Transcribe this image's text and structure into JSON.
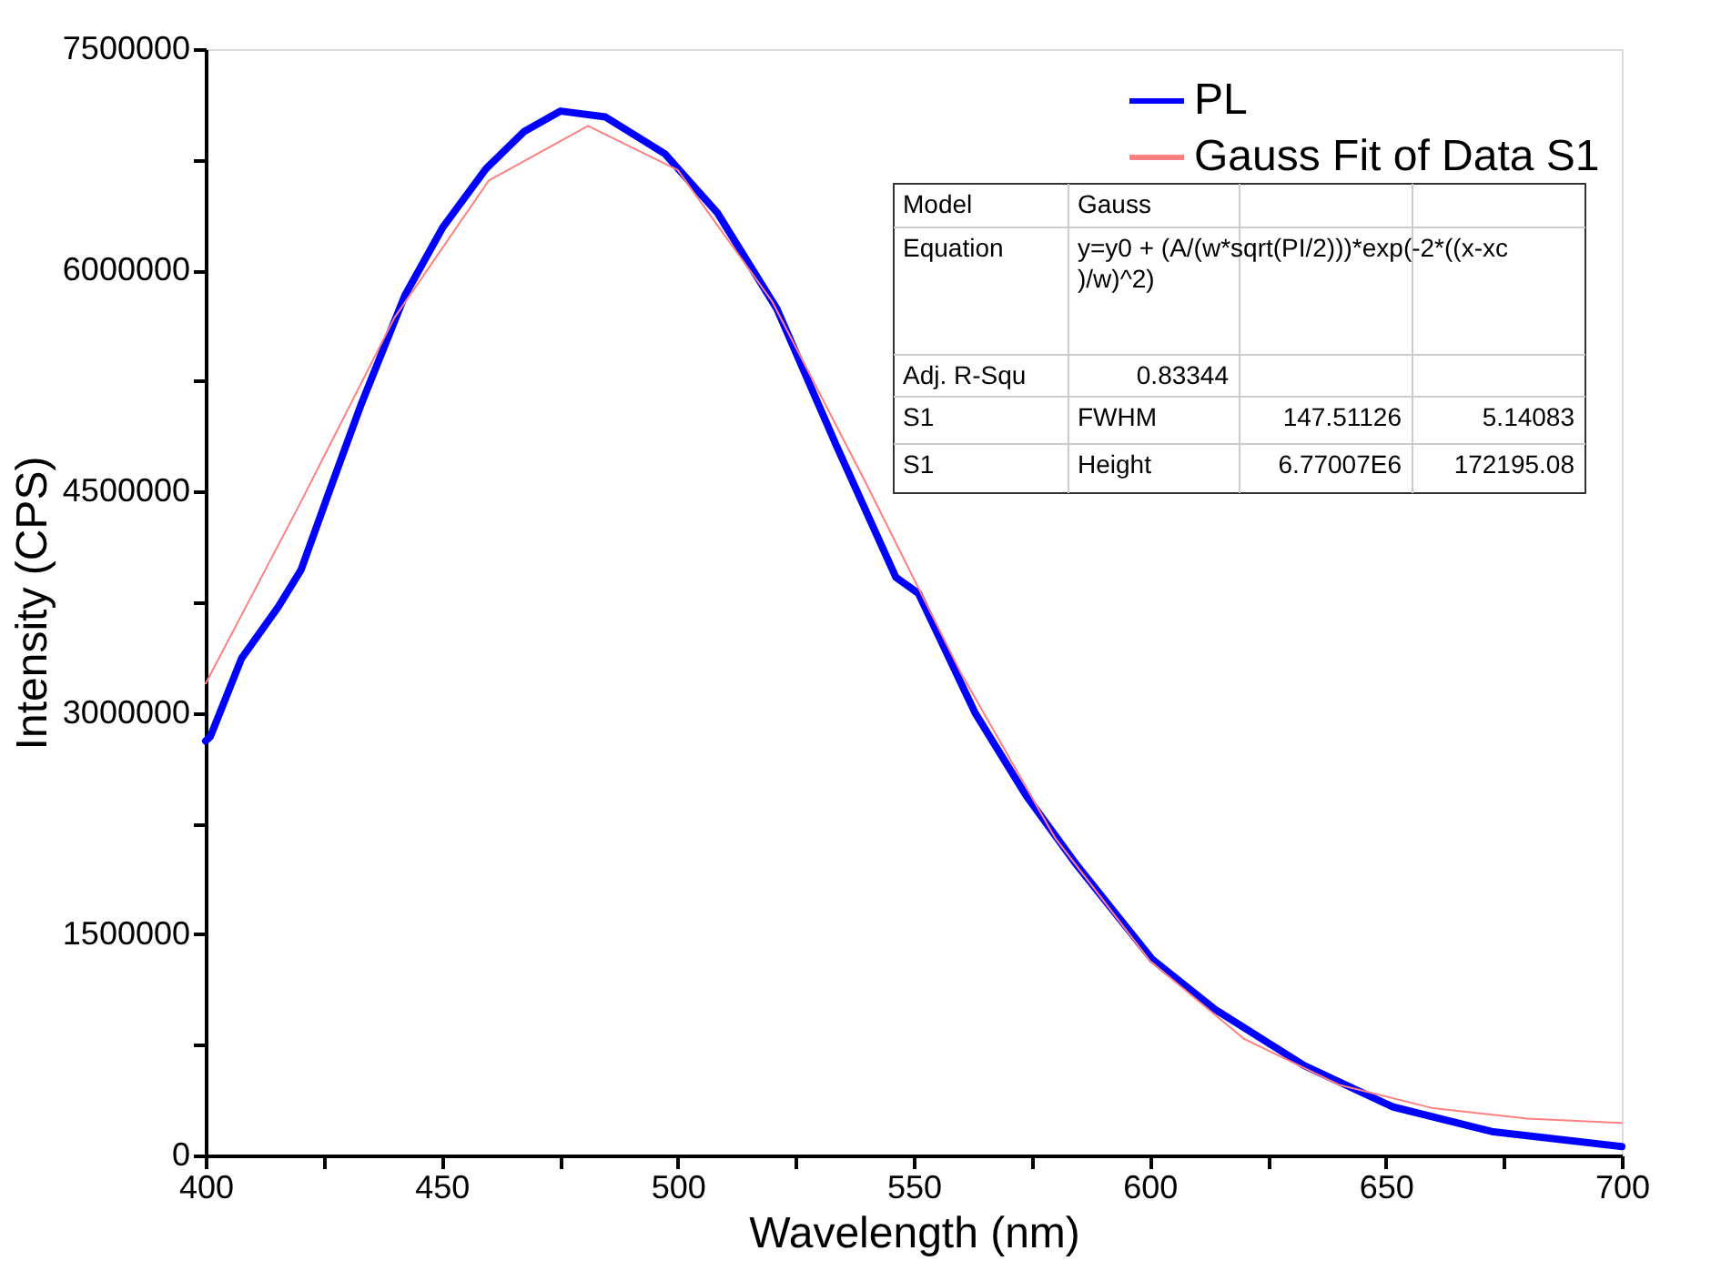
{
  "chart_data": {
    "type": "line",
    "xlabel": "Wavelength (nm)",
    "ylabel": "Intensity (CPS)",
    "xlim": [
      400,
      700
    ],
    "ylim": [
      0,
      7500000
    ],
    "xticks": [
      400,
      {
        "value": 425,
        "label": null
      },
      450,
      {
        "value": 475,
        "label": null
      },
      500,
      {
        "value": 525,
        "label": null
      },
      550,
      {
        "value": 575,
        "label": null
      },
      600,
      {
        "value": 625,
        "label": null
      },
      650,
      {
        "value": 675,
        "label": null
      },
      700
    ],
    "yticks": [
      0,
      {
        "value": 750000,
        "label": null
      },
      1500000,
      {
        "value": 2250000,
        "label": null
      },
      3000000,
      {
        "value": 3750000,
        "label": null
      },
      4500000,
      {
        "value": 5250000,
        "label": null
      },
      6000000,
      {
        "value": 6750000,
        "label": null
      },
      7500000
    ],
    "grid": false,
    "legend": "top right",
    "line_style": "solid",
    "marker": "none",
    "series": [
      {
        "name": "PL",
        "color": "#0000ff",
        "x": [
          400,
          401,
          407.6,
          415.4,
          420.2,
          426.5,
          432.8,
          442.2,
          450.2,
          459.4,
          467.4,
          475.2,
          484.7,
          497.3,
          508.4,
          521,
          533.5,
          546.2,
          551,
          563,
          573.8,
          584.5,
          600.5,
          613.8,
          632.7,
          651.4,
          672.8,
          700
        ],
        "values": [
          2810000,
          2840000,
          3370000,
          3720000,
          3970000,
          4530000,
          5080000,
          5830000,
          6290000,
          6690000,
          6940000,
          7080000,
          7040000,
          6790000,
          6390000,
          5740000,
          4820000,
          3920000,
          3810000,
          3000000,
          2440000,
          1970000,
          1330000,
          990000,
          610000,
          330000,
          160000,
          60000
        ]
      },
      {
        "name": "Gauss Fit of Data S1",
        "color": "#ff8080",
        "x": [
          400,
          420,
          440,
          460,
          481,
          500,
          520,
          540,
          560,
          580,
          600,
          620,
          640,
          660,
          680,
          700
        ],
        "values": [
          3200000,
          4420000,
          5680000,
          6610000,
          6980000,
          6680000,
          5790000,
          4550000,
          3270000,
          2150000,
          1320000,
          790000,
          480000,
          320000,
          250000,
          220000
        ]
      }
    ],
    "annotations": [
      "Model",
      "Gauss",
      "Equation",
      "y=y0 + (A/(w*sqrt(PI/2)))*exp(-2*((x-xc)/w)^2)",
      "Adj. R-Squ",
      "0.83344",
      "S1",
      "FWHM",
      "147.51126",
      "5.14083",
      "S1",
      "Height",
      "6.77007E6",
      "172195.08"
    ]
  }
}
